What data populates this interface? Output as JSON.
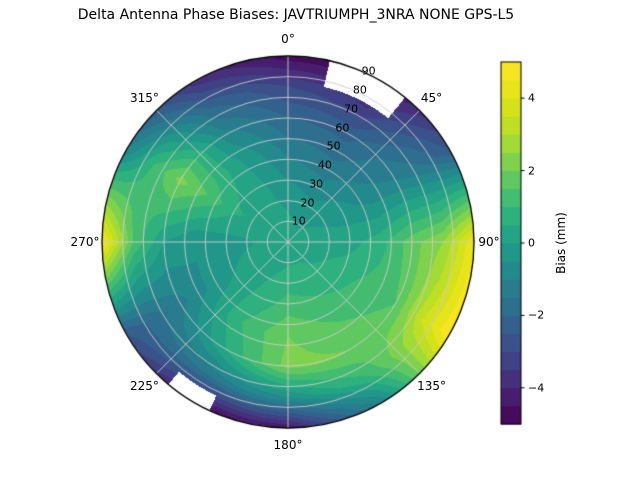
{
  "chart_data": {
    "type": "heatmap",
    "projection": "polar",
    "style": "filled_contour",
    "title": "Delta Antenna Phase Biases: JAVTRIUMPH_3NRA NONE GPS-L5",
    "angular_axis": {
      "direction": "clockwise",
      "zero_location": "top",
      "tick_deg": [
        0,
        45,
        90,
        135,
        180,
        225,
        270,
        315
      ],
      "tick_labels": [
        "0°",
        "45°",
        "90°",
        "135°",
        "180°",
        "225°",
        "270°",
        "315°"
      ]
    },
    "radial_axis": {
      "range": [
        0,
        90
      ],
      "ticks": [
        10,
        20,
        30,
        40,
        50,
        60,
        70,
        80,
        90
      ],
      "tick_labels": [
        "10",
        "20",
        "30",
        "40",
        "50",
        "60",
        "70",
        "80",
        "90"
      ],
      "label_azimuth_deg": 25
    },
    "colorbar": {
      "label": "Bias (mm)",
      "vmin": -5,
      "vmax": 5,
      "ticks": [
        -4,
        -2,
        0,
        2,
        4
      ],
      "tick_labels": [
        "−4",
        "−2",
        "0",
        "2",
        "4"
      ],
      "colormap": "viridis",
      "colormap_stops": [
        [
          0.0,
          "#440154"
        ],
        [
          0.1,
          "#482878"
        ],
        [
          0.2,
          "#3e4989"
        ],
        [
          0.3,
          "#31688e"
        ],
        [
          0.4,
          "#26828e"
        ],
        [
          0.5,
          "#1f9e89"
        ],
        [
          0.6,
          "#35b779"
        ],
        [
          0.7,
          "#6dcd59"
        ],
        [
          0.8,
          "#b4de2c"
        ],
        [
          0.9,
          "#dfe318"
        ],
        [
          1.0,
          "#fde725"
        ]
      ]
    },
    "contour_level_step": 0.5,
    "grid": {
      "azimuth_deg": [
        0,
        30,
        60,
        90,
        120,
        150,
        180,
        210,
        240,
        270,
        300,
        330
      ],
      "zenith_deg": [
        0,
        15,
        30,
        45,
        60,
        75,
        90
      ],
      "values_mm": [
        [
          0.2,
          0.2,
          0.2,
          0.2,
          0.2,
          0.2,
          0.2,
          0.2,
          0.2,
          0.2,
          0.2,
          0.2
        ],
        [
          0.0,
          -0.2,
          0.0,
          0.2,
          0.4,
          0.6,
          0.6,
          0.4,
          0.2,
          0.0,
          0.3,
          0.2
        ],
        [
          -0.5,
          -0.8,
          -0.3,
          0.3,
          0.8,
          1.0,
          1.2,
          0.6,
          0.0,
          -0.2,
          0.6,
          0.2
        ],
        [
          -1.2,
          -1.5,
          -0.8,
          0.8,
          1.2,
          1.5,
          2.0,
          1.0,
          -0.5,
          -0.5,
          1.5,
          0.0
        ],
        [
          -2.0,
          -2.2,
          -1.0,
          1.8,
          1.5,
          2.0,
          2.2,
          0.5,
          -1.2,
          0.0,
          2.2,
          -0.8
        ],
        [
          -3.0,
          -3.5,
          -1.5,
          2.5,
          3.5,
          1.0,
          -0.5,
          -1.5,
          -1.8,
          1.5,
          1.0,
          -2.0
        ],
        [
          -4.8,
          -5.0,
          -2.5,
          4.5,
          5.0,
          -1.0,
          -4.5,
          -4.8,
          -2.5,
          4.8,
          -1.0,
          -3.8
        ]
      ]
    },
    "masked_regions": [
      {
        "azimuth_deg": [
          13,
          39
        ],
        "zenith_deg": [
          77,
          90
        ]
      },
      {
        "azimuth_deg": [
          205,
          220
        ],
        "zenith_deg": [
          82,
          90
        ]
      }
    ],
    "grid_lines": {
      "circle_step": 10,
      "spoke_step_deg": 45,
      "color": "#cdcdcd"
    }
  }
}
